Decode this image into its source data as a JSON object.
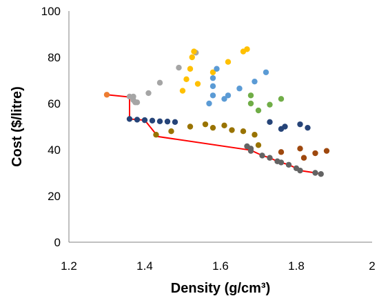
{
  "chart_data": {
    "type": "scatter",
    "title": "",
    "xlabel": "Density (g/cm³)",
    "ylabel": "Cost ($/litre)",
    "xlim": [
      1.2,
      2.0
    ],
    "ylim": [
      0,
      100
    ],
    "xticks": [
      "1.2",
      "1.4",
      "1.6",
      "1.8",
      "2"
    ],
    "yticks": [
      "0",
      "20",
      "40",
      "60",
      "80",
      "100"
    ],
    "grid": false,
    "legend": "none",
    "series": [
      {
        "color": "#ED7D31",
        "points": [
          [
            1.3,
            63.8
          ]
        ]
      },
      {
        "color": "#A5A5A5",
        "points": [
          [
            1.36,
            63.0
          ],
          [
            1.37,
            63.0
          ],
          [
            1.37,
            61.5
          ],
          [
            1.375,
            60.5
          ],
          [
            1.38,
            60.5
          ],
          [
            1.41,
            64.5
          ],
          [
            1.44,
            69.0
          ],
          [
            1.49,
            75.5
          ],
          [
            1.535,
            82.0
          ]
        ]
      },
      {
        "color": "#FFC000",
        "points": [
          [
            1.5,
            65.5
          ],
          [
            1.51,
            70.5
          ],
          [
            1.52,
            75.0
          ],
          [
            1.525,
            80.0
          ],
          [
            1.53,
            82.5
          ],
          [
            1.54,
            68.5
          ],
          [
            1.58,
            73.5
          ],
          [
            1.62,
            78.0
          ],
          [
            1.66,
            82.5
          ],
          [
            1.67,
            83.5
          ]
        ]
      },
      {
        "color": "#5B9BD5",
        "points": [
          [
            1.57,
            60.0
          ],
          [
            1.58,
            63.5
          ],
          [
            1.58,
            67.5
          ],
          [
            1.58,
            71.0
          ],
          [
            1.59,
            75.0
          ],
          [
            1.61,
            62.0
          ],
          [
            1.62,
            63.5
          ],
          [
            1.65,
            66.5
          ],
          [
            1.69,
            69.5
          ],
          [
            1.72,
            73.5
          ]
        ]
      },
      {
        "color": "#70AD47",
        "points": [
          [
            1.68,
            60.0
          ],
          [
            1.68,
            63.5
          ],
          [
            1.7,
            57.0
          ],
          [
            1.73,
            59.5
          ],
          [
            1.76,
            62.0
          ]
        ]
      },
      {
        "color": "#264478",
        "points": [
          [
            1.36,
            53.3
          ],
          [
            1.38,
            53.0
          ],
          [
            1.4,
            52.8
          ],
          [
            1.42,
            52.6
          ],
          [
            1.44,
            52.3
          ],
          [
            1.46,
            52.2
          ],
          [
            1.48,
            52.0
          ],
          [
            1.73,
            52.0
          ],
          [
            1.76,
            49.0
          ],
          [
            1.77,
            50.0
          ],
          [
            1.81,
            51.0
          ],
          [
            1.83,
            49.5
          ]
        ]
      },
      {
        "color": "#997300",
        "points": [
          [
            1.43,
            46.5
          ],
          [
            1.47,
            48.0
          ],
          [
            1.52,
            50.0
          ],
          [
            1.56,
            51.0
          ],
          [
            1.58,
            49.5
          ],
          [
            1.61,
            50.5
          ],
          [
            1.63,
            48.5
          ],
          [
            1.66,
            48.0
          ],
          [
            1.69,
            46.5
          ],
          [
            1.7,
            42.0
          ]
        ]
      },
      {
        "color": "#9E480E",
        "points": [
          [
            1.76,
            39.0
          ],
          [
            1.81,
            40.5
          ],
          [
            1.82,
            36.5
          ],
          [
            1.85,
            38.5
          ],
          [
            1.88,
            39.5
          ]
        ]
      },
      {
        "color": "#636363",
        "points": [
          [
            1.67,
            41.5
          ],
          [
            1.68,
            40.5
          ],
          [
            1.68,
            39.5
          ],
          [
            1.71,
            37.5
          ],
          [
            1.73,
            36.5
          ],
          [
            1.75,
            35.0
          ],
          [
            1.76,
            34.5
          ],
          [
            1.78,
            33.5
          ],
          [
            1.8,
            32.0
          ],
          [
            1.81,
            31.0
          ],
          [
            1.85,
            30.0
          ],
          [
            1.865,
            29.5
          ]
        ]
      }
    ],
    "pareto_front": {
      "color": "#FF0000",
      "points": [
        [
          1.3,
          63.8
        ],
        [
          1.36,
          62.8
        ],
        [
          1.36,
          53.3
        ],
        [
          1.4,
          52.8
        ],
        [
          1.435,
          45.7
        ],
        [
          1.68,
          39.8
        ],
        [
          1.71,
          37.5
        ],
        [
          1.73,
          36.5
        ],
        [
          1.75,
          35.0
        ],
        [
          1.76,
          34.5
        ],
        [
          1.78,
          33.5
        ],
        [
          1.8,
          32.0
        ],
        [
          1.81,
          31.0
        ],
        [
          1.85,
          30.0
        ],
        [
          1.865,
          29.5
        ]
      ]
    }
  }
}
